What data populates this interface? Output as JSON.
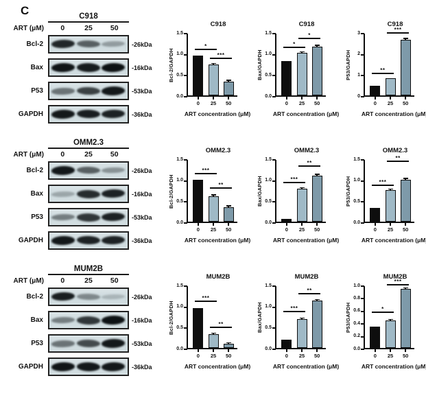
{
  "panel_label": "C",
  "art_units_label": "ART (μM)",
  "lane_labels": [
    "0",
    "25",
    "50"
  ],
  "x_axis_title": "ART concentration (μM)",
  "colors": {
    "bar_0": "#0e0e0e",
    "bar_25": "#9fb9c6",
    "bar_50": "#7e9aa9",
    "axis": "#0d0d0d",
    "blot_background": "#ccd9dd"
  },
  "rows": [
    {
      "cell_line": "C918",
      "blots": [
        {
          "protein": "Bcl-2",
          "kda": "-26kDa",
          "bands": [
            0.88,
            0.6,
            0.3
          ]
        },
        {
          "protein": "Bax",
          "kda": "-16kDa",
          "bands": [
            0.97,
            0.93,
            0.98
          ]
        },
        {
          "protein": "P53",
          "kda": "-53kDa",
          "bands": [
            0.5,
            0.75,
            0.95
          ]
        },
        {
          "protein": "GAPDH",
          "kda": "-36kDa",
          "bands": [
            0.95,
            0.92,
            0.9
          ]
        }
      ],
      "charts": [
        {
          "title": "C918",
          "ylabel": "Bcl-2/GAPDH",
          "ymax": 1.5,
          "yticks": [
            "0.0",
            "0.5",
            "1.0",
            "1.5"
          ],
          "categories": [
            "0",
            "25",
            "50"
          ],
          "values": [
            0.95,
            0.73,
            0.33
          ],
          "errors": [
            0,
            0.02,
            0.01
          ],
          "sig": [
            {
              "pair": [
                0,
                1
              ],
              "label": "*",
              "y": 1.07
            },
            {
              "pair": [
                1,
                2
              ],
              "label": "***",
              "y": 0.87
            }
          ]
        },
        {
          "title": "C918",
          "ylabel": "Bax/GAPDH",
          "ymax": 1.5,
          "yticks": [
            "0.0",
            "0.5",
            "1.0",
            "1.5"
          ],
          "categories": [
            "0",
            "25",
            "50"
          ],
          "values": [
            0.82,
            1.01,
            1.16
          ],
          "errors": [
            0,
            0.02,
            0.02
          ],
          "sig": [
            {
              "pair": [
                0,
                1
              ],
              "label": "*",
              "y": 1.12
            },
            {
              "pair": [
                1,
                2
              ],
              "label": "*",
              "y": 1.33
            }
          ]
        },
        {
          "title": "C918",
          "ylabel": "P53/GAPDH",
          "ymax": 3,
          "yticks": [
            "0",
            "1",
            "2",
            "3"
          ],
          "categories": [
            "0",
            "25",
            "50"
          ],
          "values": [
            0.45,
            0.82,
            2.65
          ],
          "errors": [
            0,
            0,
            0.06
          ],
          "sig": [
            {
              "pair": [
                0,
                1
              ],
              "label": "**",
              "y": 1.02
            },
            {
              "pair": [
                1,
                2
              ],
              "label": "***",
              "y": 2.92
            }
          ]
        }
      ]
    },
    {
      "cell_line": "OMM2.3",
      "blots": [
        {
          "protein": "Bcl-2",
          "kda": "-26kDa",
          "bands": [
            0.95,
            0.6,
            0.35
          ]
        },
        {
          "protein": "Bax",
          "kda": "-16kDa",
          "bands": [
            0.25,
            0.85,
            0.9
          ]
        },
        {
          "protein": "P53",
          "kda": "-53kDa",
          "bands": [
            0.45,
            0.8,
            0.9
          ]
        },
        {
          "protein": "GAPDH",
          "kda": "-36kDa",
          "bands": [
            0.95,
            0.9,
            0.9
          ]
        }
      ],
      "charts": [
        {
          "title": "OMM2.3",
          "ylabel": "Bcl-2/GAPDH",
          "ymax": 1.5,
          "yticks": [
            "0.0",
            "0.5",
            "1.0",
            "1.5"
          ],
          "categories": [
            "0",
            "25",
            "50"
          ],
          "values": [
            1.0,
            0.61,
            0.35
          ],
          "errors": [
            0,
            0.02,
            0.01
          ],
          "sig": [
            {
              "pair": [
                0,
                1
              ],
              "label": "***",
              "y": 1.13
            },
            {
              "pair": [
                1,
                2
              ],
              "label": "**",
              "y": 0.78
            }
          ]
        },
        {
          "title": "OMM2.3",
          "ylabel": "Bax/GAPDH",
          "ymax": 1.5,
          "yticks": [
            "0.0",
            "0.5",
            "1.0",
            "1.5"
          ],
          "categories": [
            "0",
            "25",
            "50"
          ],
          "values": [
            0.07,
            0.78,
            1.1
          ],
          "errors": [
            0,
            0.03,
            0.02
          ],
          "sig": [
            {
              "pair": [
                0,
                1
              ],
              "label": "***",
              "y": 0.92
            },
            {
              "pair": [
                1,
                2
              ],
              "label": "**",
              "y": 1.3
            }
          ]
        },
        {
          "title": "OMM2.3",
          "ylabel": "P53/GAPDH",
          "ymax": 1.5,
          "yticks": [
            "0.0",
            "0.5",
            "1.0",
            "1.5"
          ],
          "categories": [
            "0",
            "25",
            "50"
          ],
          "values": [
            0.33,
            0.75,
            1.0
          ],
          "errors": [
            0,
            0.03,
            0.02
          ],
          "sig": [
            {
              "pair": [
                0,
                1
              ],
              "label": "***",
              "y": 0.85
            },
            {
              "pair": [
                1,
                2
              ],
              "label": "**",
              "y": 1.42
            }
          ]
        }
      ]
    },
    {
      "cell_line": "MUM2B",
      "blots": [
        {
          "protein": "Bcl-2",
          "kda": "-26kDa",
          "bands": [
            0.92,
            0.4,
            0.18
          ]
        },
        {
          "protein": "Bax",
          "kda": "-16kDa",
          "bands": [
            0.45,
            0.8,
            0.98
          ]
        },
        {
          "protein": "P53",
          "kda": "-53kDa",
          "bands": [
            0.5,
            0.7,
            0.95
          ]
        },
        {
          "protein": "GAPDH",
          "kda": "-36kDa",
          "bands": [
            0.97,
            0.95,
            0.95
          ]
        }
      ],
      "charts": [
        {
          "title": "MUM2B",
          "ylabel": "Bcl-2/GAPDH",
          "ymax": 1.5,
          "yticks": [
            "0.0",
            "0.5",
            "1.0",
            "1.5"
          ],
          "categories": [
            "0",
            "25",
            "50"
          ],
          "values": [
            0.95,
            0.32,
            0.09
          ],
          "errors": [
            0,
            0.02,
            0.01
          ],
          "sig": [
            {
              "pair": [
                0,
                1
              ],
              "label": "***",
              "y": 1.1
            },
            {
              "pair": [
                1,
                2
              ],
              "label": "**",
              "y": 0.48
            }
          ]
        },
        {
          "title": "MUM2B",
          "ylabel": "Bax/GAPDH",
          "ymax": 1.5,
          "yticks": [
            "0.0",
            "0.5",
            "1.0",
            "1.5"
          ],
          "categories": [
            "0",
            "25",
            "50"
          ],
          "values": [
            0.2,
            0.68,
            1.12
          ],
          "errors": [
            0,
            0.02,
            0.03
          ],
          "sig": [
            {
              "pair": [
                0,
                1
              ],
              "label": "***",
              "y": 0.85
            },
            {
              "pair": [
                1,
                2
              ],
              "label": "**",
              "y": 1.28
            }
          ]
        },
        {
          "title": "MUM2B",
          "ylabel": "P53/GAPDH",
          "ymax": 1.0,
          "yticks": [
            "0.0",
            "0.2",
            "0.4",
            "0.6",
            "0.8",
            "1.0"
          ],
          "categories": [
            "0",
            "25",
            "50"
          ],
          "values": [
            0.34,
            0.43,
            0.93
          ],
          "errors": [
            0,
            0.02,
            0.02
          ],
          "sig": [
            {
              "pair": [
                0,
                1
              ],
              "label": "*",
              "y": 0.55
            },
            {
              "pair": [
                1,
                2
              ],
              "label": "***",
              "y": 0.99
            }
          ]
        }
      ]
    }
  ]
}
